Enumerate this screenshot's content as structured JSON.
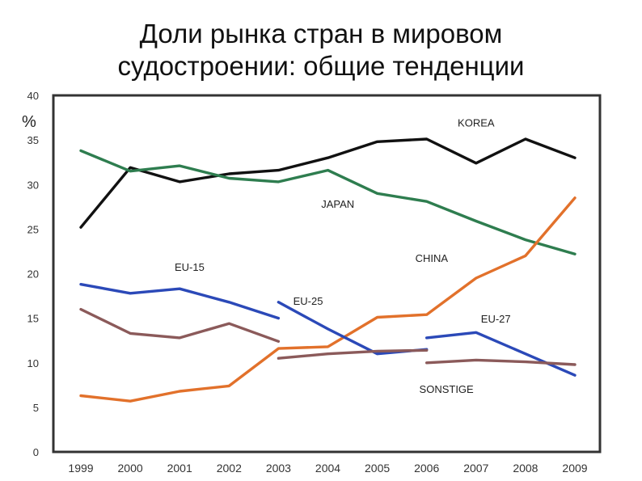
{
  "title_lines": [
    "Доли рынка стран в мировом",
    "судостроении: общие тенденции"
  ],
  "chart_data": {
    "type": "line",
    "x": [
      "1999",
      "2000",
      "2001",
      "2002",
      "2003",
      "2004",
      "2005",
      "2006",
      "2007",
      "2008",
      "2009"
    ],
    "ylim": [
      0,
      40
    ],
    "yticks": [
      "0",
      "5",
      "10",
      "15",
      "20",
      "25",
      "30",
      "35",
      "40"
    ],
    "ylabel": "%",
    "grid": false,
    "series": [
      {
        "name": "KOREA",
        "color": "#111111",
        "segments": [
          {
            "x": [
              1999,
              2000,
              2001,
              2002,
              2003,
              2004,
              2005,
              2006,
              2007,
              2008,
              2009
            ],
            "y": [
              25.2,
              31.9,
              30.3,
              31.2,
              31.6,
              33.0,
              34.8,
              35.1,
              32.4,
              35.1,
              33.0
            ]
          }
        ]
      },
      {
        "name": "JAPAN",
        "color": "#2e7d4f",
        "segments": [
          {
            "x": [
              1999,
              2000,
              2001,
              2002,
              2003,
              2004,
              2005,
              2006,
              2007,
              2008,
              2009
            ],
            "y": [
              33.8,
              31.5,
              32.1,
              30.7,
              30.3,
              31.6,
              29.0,
              28.1,
              25.9,
              23.8,
              22.2
            ]
          }
        ]
      },
      {
        "name": "CHINA",
        "color": "#e2712b",
        "segments": [
          {
            "x": [
              1999,
              2000,
              2001,
              2002,
              2003,
              2004,
              2005,
              2006,
              2007,
              2008,
              2009
            ],
            "y": [
              6.3,
              5.7,
              6.8,
              7.4,
              11.6,
              11.8,
              15.1,
              15.4,
              19.5,
              22.0,
              28.5
            ]
          }
        ]
      },
      {
        "name": "EU-15",
        "color": "#2b49b8",
        "segments": [
          {
            "x": [
              1999,
              2000,
              2001,
              2002,
              2003
            ],
            "y": [
              18.8,
              17.8,
              18.3,
              16.8,
              15.0
            ]
          }
        ]
      },
      {
        "name": "EU-25",
        "color": "#2b49b8",
        "segments": [
          {
            "x": [
              2003,
              2004,
              2005,
              2006
            ],
            "y": [
              16.8,
              13.8,
              11.0,
              11.5
            ]
          }
        ]
      },
      {
        "name": "EU-27",
        "color": "#2b49b8",
        "segments": [
          {
            "x": [
              2006,
              2007,
              2008,
              2009
            ],
            "y": [
              12.8,
              13.4,
              11.0,
              8.6
            ]
          }
        ]
      },
      {
        "name": "SONSTIGE",
        "color": "#8b5a5a",
        "segments": [
          {
            "x": [
              1999,
              2000,
              2001,
              2002,
              2003
            ],
            "y": [
              16.0,
              13.3,
              12.8,
              14.4,
              12.4
            ]
          },
          {
            "x": [
              2003,
              2004,
              2005,
              2006
            ],
            "y": [
              10.5,
              11.0,
              11.3,
              11.4
            ]
          },
          {
            "x": [
              2006,
              2007,
              2008,
              2009
            ],
            "y": [
              10.0,
              10.3,
              10.1,
              9.8
            ]
          }
        ]
      }
    ],
    "annotations": [
      {
        "text": "KOREA",
        "x": 2007.0,
        "y": 36.5
      },
      {
        "text": "JAPAN",
        "x": 2004.2,
        "y": 27.4
      },
      {
        "text": "CHINA",
        "x": 2006.1,
        "y": 21.3
      },
      {
        "text": "EU-15",
        "x": 2001.2,
        "y": 20.3
      },
      {
        "text": "EU-25",
        "x": 2003.6,
        "y": 16.5
      },
      {
        "text": "EU-27",
        "x": 2007.4,
        "y": 14.5
      },
      {
        "text": "SONSTIGE",
        "x": 2006.4,
        "y": 6.6
      }
    ]
  }
}
